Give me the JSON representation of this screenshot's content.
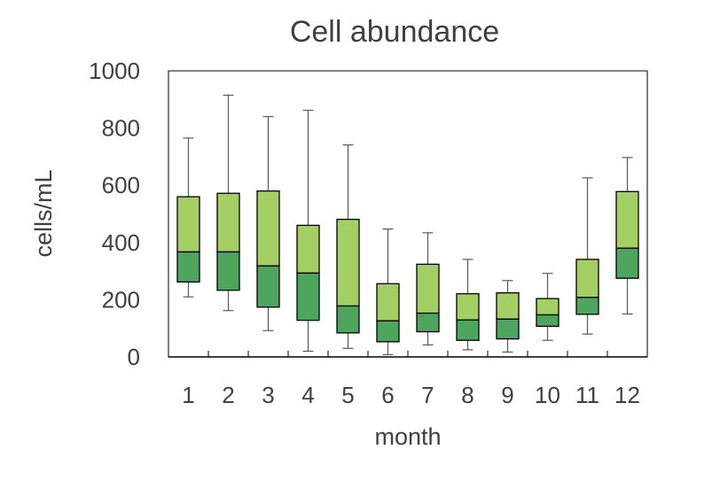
{
  "chart_data": {
    "type": "box",
    "title": "Cell abundance",
    "xlabel": "month",
    "ylabel": "cells/mL",
    "ylim": [
      0,
      1000
    ],
    "yticks": [
      0,
      200,
      400,
      600,
      800,
      1000
    ],
    "grid": false,
    "legend": "none",
    "categories": [
      "1",
      "2",
      "3",
      "4",
      "5",
      "6",
      "7",
      "8",
      "9",
      "10",
      "11",
      "12"
    ],
    "colors": {
      "lower_box": "#4ea55e",
      "upper_box": "#a3cf64",
      "outline": "#000000",
      "whisker": "#595959",
      "axis": "#000000",
      "text": "#404040"
    },
    "series": [
      {
        "min": 210,
        "q1": 262,
        "median": 367,
        "q3": 560,
        "max": 765
      },
      {
        "min": 162,
        "q1": 233,
        "median": 367,
        "q3": 572,
        "max": 915
      },
      {
        "min": 92,
        "q1": 174,
        "median": 318,
        "q3": 580,
        "max": 840
      },
      {
        "min": 20,
        "q1": 128,
        "median": 293,
        "q3": 460,
        "max": 862
      },
      {
        "min": 30,
        "q1": 84,
        "median": 178,
        "q3": 481,
        "max": 741
      },
      {
        "min": 8,
        "q1": 53,
        "median": 126,
        "q3": 256,
        "max": 447
      },
      {
        "min": 42,
        "q1": 88,
        "median": 153,
        "q3": 324,
        "max": 434
      },
      {
        "min": 25,
        "q1": 58,
        "median": 129,
        "q3": 221,
        "max": 341
      },
      {
        "min": 17,
        "q1": 63,
        "median": 132,
        "q3": 224,
        "max": 267
      },
      {
        "min": 58,
        "q1": 107,
        "median": 147,
        "q3": 204,
        "max": 292
      },
      {
        "min": 80,
        "q1": 149,
        "median": 208,
        "q3": 341,
        "max": 626
      },
      {
        "min": 150,
        "q1": 275,
        "median": 380,
        "q3": 578,
        "max": 697
      }
    ]
  }
}
